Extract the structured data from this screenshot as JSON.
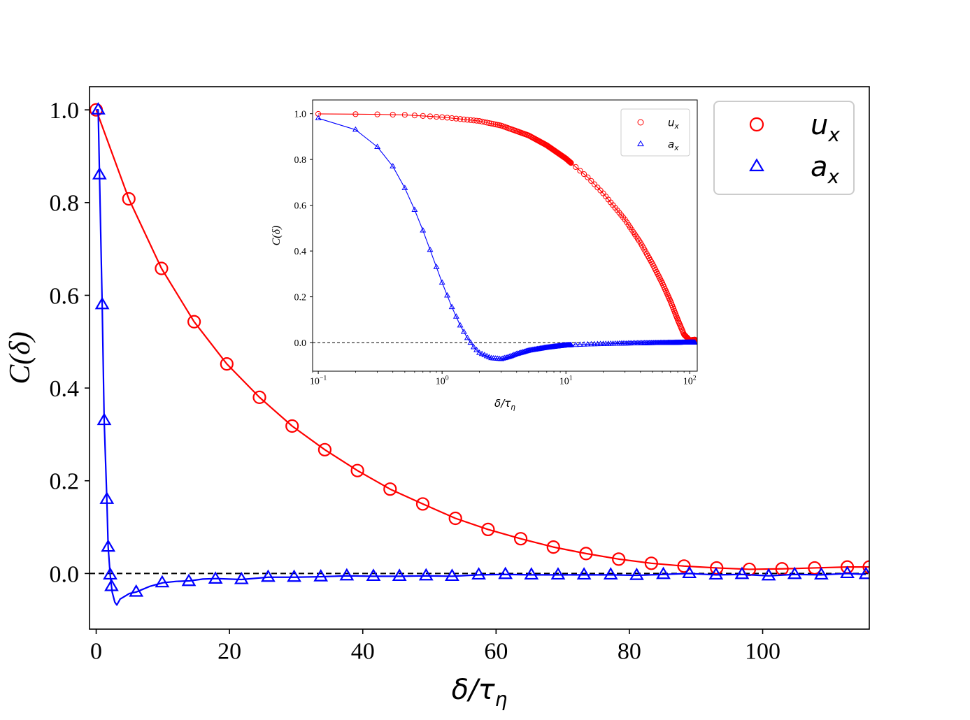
{
  "chart_data": [
    {
      "type": "line",
      "role": "main",
      "xlabel": "δ/τ",
      "xlabel_sub": "η",
      "ylabel": "C(δ)",
      "xlim": [
        -1,
        116
      ],
      "ylim": [
        -0.12,
        1.05
      ],
      "xticks": [
        0,
        20,
        40,
        60,
        80,
        100
      ],
      "xtick_labels": [
        "0",
        "20",
        "40",
        "60",
        "80",
        "100"
      ],
      "yticks": [
        0.0,
        0.2,
        0.4,
        0.6,
        0.8,
        1.0
      ],
      "ytick_labels": [
        "0.0",
        "0.2",
        "0.4",
        "0.6",
        "0.8",
        "1.0"
      ],
      "reference_line": {
        "y": 0,
        "style": "dashed",
        "color": "#000000"
      },
      "legend": {
        "position": "top-right",
        "entries": [
          {
            "label": "u",
            "sub": "x",
            "marker": "circle",
            "color": "#ff0000"
          },
          {
            "label": "a",
            "sub": "x",
            "marker": "triangle",
            "color": "#0000ff"
          }
        ]
      },
      "series": [
        {
          "name": "u_x",
          "color": "#ff0000",
          "marker": "circle",
          "x": [
            0,
            4.9,
            9.8,
            14.7,
            19.6,
            24.5,
            29.4,
            34.3,
            39.2,
            44.1,
            49,
            53.9,
            58.8,
            63.7,
            68.6,
            73.5,
            78.4,
            83.3,
            88.2,
            93.1,
            98,
            102.9,
            107.8,
            112.7,
            116
          ],
          "y": [
            1.0,
            0.808,
            0.658,
            0.543,
            0.452,
            0.38,
            0.318,
            0.267,
            0.222,
            0.182,
            0.15,
            0.119,
            0.095,
            0.075,
            0.057,
            0.043,
            0.031,
            0.022,
            0.016,
            0.012,
            0.009,
            0.01,
            0.012,
            0.014,
            0.014
          ]
        },
        {
          "name": "a_x",
          "color": "#0000ff",
          "marker": "triangle",
          "x": [
            0.3,
            0.5,
            0.9,
            1.2,
            1.6,
            1.8,
            2.1,
            2.3,
            6,
            9.9,
            13.9,
            17.9,
            21.8,
            25.8,
            29.7,
            33.7,
            37.6,
            41.6,
            45.5,
            49.5,
            53.4,
            57.4,
            61.4,
            65.3,
            69.3,
            73.2,
            77.2,
            81.1,
            85.1,
            89,
            93,
            96.9,
            100.9,
            104.8,
            108.8,
            112.7,
            115.5
          ],
          "y": [
            1.0,
            0.86,
            0.58,
            0.33,
            0.16,
            0.057,
            -0.003,
            -0.028,
            -0.04,
            -0.02,
            -0.017,
            -0.012,
            -0.013,
            -0.008,
            -0.008,
            -0.007,
            -0.005,
            -0.006,
            -0.006,
            -0.005,
            -0.006,
            -0.003,
            -0.002,
            -0.003,
            -0.003,
            -0.003,
            -0.003,
            -0.004,
            -0.002,
            0.0,
            -0.003,
            -0.002,
            -0.005,
            -0.002,
            -0.003,
            0.0,
            -0.002
          ]
        }
      ]
    },
    {
      "type": "line",
      "role": "inset",
      "xscale": "log",
      "xlabel": "δ/τ",
      "xlabel_sub": "η",
      "ylabel": "C(δ)",
      "xlim": [
        0.09,
        115
      ],
      "ylim": [
        -0.125,
        1.06
      ],
      "xticks": [
        0.1,
        1,
        10,
        100
      ],
      "xtick_labels": [
        {
          "base": "10",
          "exp": "−1"
        },
        {
          "base": "10",
          "exp": "0"
        },
        {
          "base": "10",
          "exp": "1"
        },
        {
          "base": "10",
          "exp": "2"
        }
      ],
      "yticks": [
        0.0,
        0.2,
        0.4,
        0.6,
        0.8,
        1.0
      ],
      "ytick_labels": [
        "0.0",
        "0.2",
        "0.4",
        "0.6",
        "0.8",
        "1.0"
      ],
      "reference_line": {
        "y": 0,
        "style": "dashed",
        "color": "#000000"
      },
      "legend": {
        "position": "top-right",
        "entries": [
          {
            "label": "u",
            "sub": "x",
            "marker": "circle",
            "color": "#ff0000"
          },
          {
            "label": "a",
            "sub": "x",
            "marker": "triangle",
            "color": "#0000ff"
          }
        ]
      },
      "series": [
        {
          "name": "u_x",
          "color": "#ff0000",
          "marker": "circle",
          "x": [
            0.1,
            0.2,
            0.3,
            0.5,
            1,
            2,
            3,
            5,
            7,
            10,
            15,
            20,
            30,
            40,
            50,
            60,
            70,
            80,
            90,
            100,
            110
          ],
          "y": [
            0.999,
            0.998,
            0.997,
            0.995,
            0.985,
            0.968,
            0.948,
            0.905,
            0.862,
            0.804,
            0.722,
            0.652,
            0.537,
            0.436,
            0.344,
            0.26,
            0.18,
            0.1,
            0.035,
            0.01,
            0.013
          ]
        },
        {
          "name": "a_x",
          "color": "#0000ff",
          "marker": "triangle",
          "x": [
            0.1,
            0.2,
            0.3,
            0.4,
            0.5,
            0.6,
            0.7,
            0.8,
            0.9,
            1.0,
            1.2,
            1.4,
            1.6,
            1.8,
            2.0,
            2.5,
            3.0,
            3.5,
            4,
            5,
            7,
            10,
            15,
            20,
            30,
            50,
            70,
            100,
            110
          ],
          "y": [
            0.98,
            0.93,
            0.855,
            0.77,
            0.675,
            0.58,
            0.49,
            0.405,
            0.33,
            0.262,
            0.155,
            0.075,
            0.02,
            -0.02,
            -0.045,
            -0.068,
            -0.072,
            -0.062,
            -0.05,
            -0.035,
            -0.022,
            -0.012,
            -0.008,
            -0.006,
            -0.004,
            -0.002,
            -0.001,
            0.0,
            0.0
          ]
        }
      ]
    }
  ]
}
